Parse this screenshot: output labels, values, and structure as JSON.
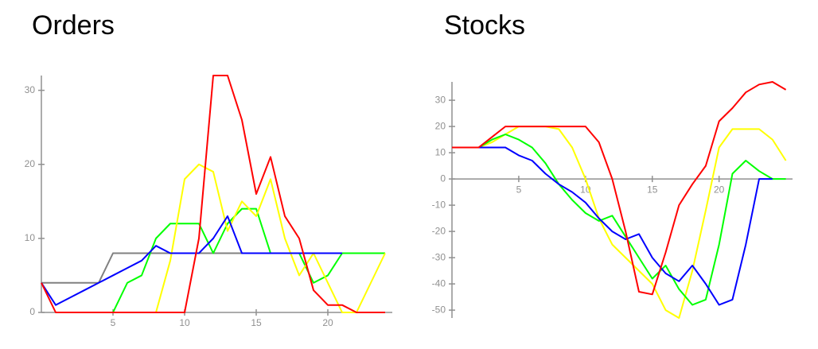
{
  "chart_data": [
    {
      "type": "line",
      "title": "Orders",
      "x": [
        0,
        1,
        2,
        3,
        4,
        5,
        6,
        7,
        8,
        9,
        10,
        11,
        12,
        13,
        14,
        15,
        16,
        17,
        18,
        19,
        20,
        21,
        22,
        23,
        24
      ],
      "xlim": [
        0,
        24.5
      ],
      "ylim": [
        0,
        32
      ],
      "xticks": [
        5,
        10,
        15,
        20
      ],
      "yticks": [
        0,
        10,
        20,
        30
      ],
      "grid": false,
      "series": [
        {
          "color": "#808080",
          "values": [
            4,
            4,
            4,
            4,
            4,
            8,
            8,
            8,
            8,
            8,
            8,
            8,
            8,
            8,
            8,
            8,
            8,
            8,
            8,
            8,
            8,
            null,
            null,
            null,
            null
          ]
        },
        {
          "color": "#00ff00",
          "values": [
            null,
            null,
            null,
            null,
            null,
            0,
            4,
            5,
            10,
            12,
            12,
            12,
            8,
            12,
            14,
            14,
            8,
            8,
            8,
            4,
            5,
            8,
            8,
            8,
            8
          ]
        },
        {
          "color": "#ffff00",
          "values": [
            null,
            null,
            null,
            null,
            null,
            null,
            null,
            null,
            0,
            7,
            18,
            20,
            19,
            11,
            15,
            13,
            18,
            10,
            5,
            8,
            4,
            0,
            0,
            4,
            8
          ]
        },
        {
          "color": "#0000ff",
          "values": [
            4,
            1,
            2,
            3,
            4,
            5,
            6,
            7,
            9,
            8,
            8,
            8,
            10,
            13,
            8,
            8,
            8,
            8,
            8,
            8,
            8,
            8,
            null,
            null,
            null
          ]
        },
        {
          "color": "#ff0000",
          "values": [
            4,
            0,
            0,
            0,
            0,
            0,
            0,
            0,
            0,
            0,
            0,
            10,
            32,
            32,
            26,
            16,
            21,
            13,
            10,
            3,
            1,
            1,
            0,
            0,
            0
          ]
        }
      ]
    },
    {
      "type": "line",
      "title": "Stocks",
      "x": [
        0,
        1,
        2,
        3,
        4,
        5,
        6,
        7,
        8,
        9,
        10,
        11,
        12,
        13,
        14,
        15,
        16,
        17,
        18,
        19,
        20,
        21,
        22,
        23,
        24,
        25
      ],
      "xlim": [
        0,
        25.5
      ],
      "ylim": [
        -53,
        37
      ],
      "xticks": [
        5,
        10,
        15,
        20
      ],
      "yticks": [
        -50,
        -40,
        -30,
        -20,
        -10,
        0,
        10,
        20,
        30
      ],
      "grid": false,
      "series": [
        {
          "color": "#ffff00",
          "values": [
            12,
            12,
            12,
            14,
            17,
            20,
            20,
            20,
            19,
            12,
            0,
            -15,
            -25,
            -30,
            -35,
            -40,
            -50,
            -53,
            -35,
            -12,
            12,
            19,
            19,
            19,
            15,
            7
          ]
        },
        {
          "color": "#00ff00",
          "values": [
            12,
            12,
            12,
            15,
            17,
            15,
            12,
            6,
            -2,
            -8,
            -13,
            -16,
            -14,
            -22,
            -30,
            -38,
            -33,
            -42,
            -48,
            -46,
            -25,
            2,
            7,
            3,
            0,
            0
          ]
        },
        {
          "color": "#0000ff",
          "values": [
            12,
            12,
            12,
            12,
            12,
            9,
            7,
            2,
            -2,
            -5,
            -9,
            -15,
            -20,
            -23,
            -21,
            -30,
            -36,
            -39,
            -33,
            -40,
            -48,
            -46,
            -25,
            0,
            0,
            null
          ]
        },
        {
          "color": "#ff0000",
          "values": [
            12,
            12,
            12,
            16,
            20,
            20,
            20,
            20,
            20,
            20,
            20,
            14,
            0,
            -20,
            -43,
            -44,
            -28,
            -10,
            -2,
            5,
            22,
            27,
            33,
            36,
            37,
            34
          ]
        }
      ]
    }
  ]
}
